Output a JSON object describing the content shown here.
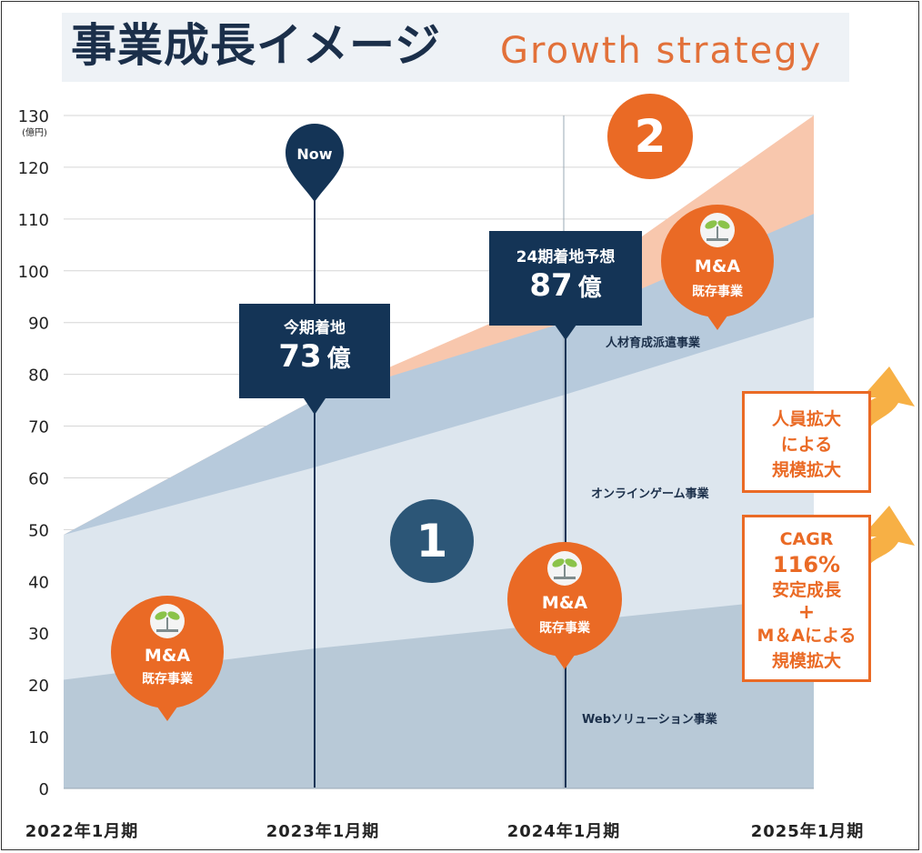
{
  "title": {
    "jp": "事業成長イメージ",
    "en": "Growth strategy"
  },
  "chart_data": {
    "type": "area",
    "categories": [
      "2022年1月期",
      "2023年1月期",
      "2024年1月期",
      "2025年1月期"
    ],
    "y_unit": "(億円)",
    "ylim": [
      0,
      130
    ],
    "y_ticks": [
      0,
      10,
      20,
      30,
      40,
      50,
      60,
      70,
      80,
      90,
      100,
      110,
      120,
      130
    ],
    "grid": true,
    "series": [
      {
        "name": "Webソリューション事業",
        "values": [
          21,
          27,
          32,
          37
        ],
        "color": "#b8c9d7"
      },
      {
        "name": "オンラインゲーム事業",
        "values": [
          49,
          62,
          76,
          91
        ],
        "color": "#dde6ee"
      },
      {
        "name": "人材育成派遣事業",
        "values": [
          49,
          75,
          90,
          111
        ],
        "color": "#b7cadc"
      },
      {
        "name": "",
        "values": [
          49,
          75,
          96,
          130
        ],
        "color": "#f8c7ad"
      }
    ],
    "annotations": {
      "now_label": "Now",
      "current": {
        "caption": "今期着地",
        "value": "73",
        "unit": "億"
      },
      "forecast": {
        "caption": "24期着地予想",
        "value": "87",
        "unit": "億"
      },
      "badge1": "1",
      "badge2": "2",
      "ma_label": "M&A",
      "ma_sub": "既存事業",
      "note1": [
        "人員拡大",
        "による",
        "規模拡大"
      ],
      "note2": [
        "CAGR",
        "116%",
        "安定成長",
        "+",
        "M＆Aによる",
        "規模拡大"
      ]
    }
  },
  "colors": {
    "navy": "#143456",
    "orange": "#ea6a25",
    "arrow": "#f7b045",
    "peach": "#f8c7ad"
  }
}
